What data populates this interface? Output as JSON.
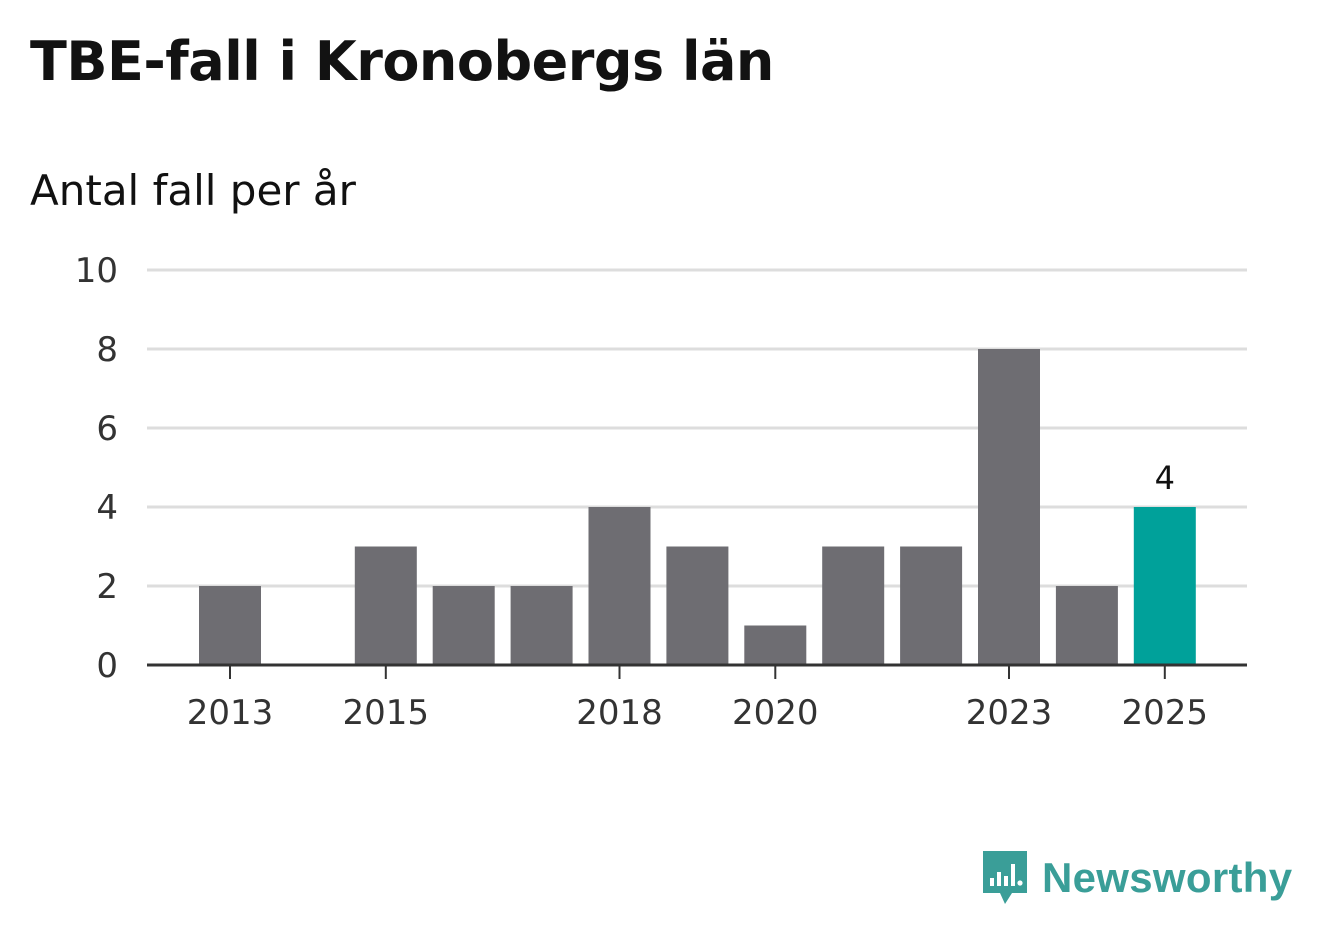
{
  "header": {
    "title": "TBE-fall i Kronobergs län",
    "subtitle": "Antal fall per år"
  },
  "brand": {
    "name": "Newsworthy",
    "icon": "newsworthy-logo-icon"
  },
  "colors": {
    "bar": "#6e6d72",
    "highlight": "#00a19a",
    "grid": "#dddddd",
    "axis": "#333333",
    "tick_text": "#333333",
    "brand": "#3a9e98"
  },
  "chart_data": {
    "type": "bar",
    "title": "TBE-fall i Kronobergs län",
    "subtitle": "Antal fall per år",
    "xlabel": "",
    "ylabel": "",
    "categories": [
      "2013",
      "2014",
      "2015",
      "2016",
      "2017",
      "2018",
      "2019",
      "2020",
      "2021",
      "2022",
      "2023",
      "2024",
      "2025"
    ],
    "values": [
      2,
      0,
      3,
      2,
      2,
      4,
      3,
      1,
      3,
      3,
      8,
      2,
      4
    ],
    "highlight_category": "2025",
    "ylim": [
      0,
      10
    ],
    "yticks": [
      0,
      2,
      4,
      6,
      8,
      10
    ],
    "xtick_labels": [
      "2013",
      "2015",
      "2018",
      "2020",
      "2023",
      "2025"
    ],
    "data_labels": [
      {
        "category": "2025",
        "text": "4"
      }
    ],
    "grid": true,
    "legend": "none"
  }
}
